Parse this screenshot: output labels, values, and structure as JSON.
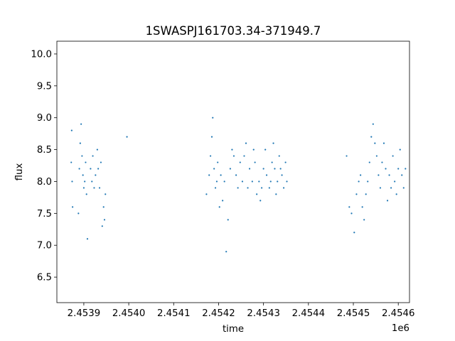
{
  "chart_data": {
    "type": "scatter",
    "title": "1SWASPJ161703.34-371949.7",
    "xlabel": "time",
    "ylabel": "flux",
    "x_offset_label": "1e6",
    "xlim": [
      2453830,
      2454615
    ],
    "ylim": [
      6.1,
      10.2
    ],
    "x_ticks": [
      {
        "value": 2453890,
        "label": "2.4539"
      },
      {
        "value": 2453990,
        "label": "2.4540"
      },
      {
        "value": 2454090,
        "label": "2.4541"
      },
      {
        "value": 2454190,
        "label": "2.4542"
      },
      {
        "value": 2454290,
        "label": "2.4543"
      },
      {
        "value": 2454390,
        "label": "2.4544"
      },
      {
        "value": 2454490,
        "label": "2.4545"
      },
      {
        "value": 2454590,
        "label": "2.4546"
      }
    ],
    "y_ticks": [
      {
        "value": 6.5,
        "label": "6.5"
      },
      {
        "value": 7.0,
        "label": "7.0"
      },
      {
        "value": 7.5,
        "label": "7.5"
      },
      {
        "value": 8.0,
        "label": "8.0"
      },
      {
        "value": 8.5,
        "label": "8.5"
      },
      {
        "value": 9.0,
        "label": "9.0"
      },
      {
        "value": 9.5,
        "label": "9.5"
      },
      {
        "value": 10.0,
        "label": "10.0"
      }
    ],
    "grid": false,
    "marker_color": "#1f77b4",
    "series": [
      {
        "x": [
          2453862,
          2453863,
          2453864,
          2453865,
          2453878,
          2453880,
          2453882,
          2453884,
          2453886,
          2453888,
          2453890,
          2453892,
          2453894,
          2453896,
          2453898,
          2453905,
          2453908,
          2453910,
          2453913,
          2453916,
          2453920,
          2453922,
          2453925,
          2453928,
          2453931,
          2453934,
          2453936,
          2453938,
          2453986,
          2454163,
          2454169,
          2454172,
          2454175,
          2454177,
          2454180,
          2454183,
          2454186,
          2454188,
          2454192,
          2454195,
          2454199,
          2454203,
          2454207,
          2454211,
          2454216,
          2454220,
          2454224,
          2454229,
          2454233,
          2454238,
          2454243,
          2454247,
          2454251,
          2454255,
          2454259,
          2454265,
          2454268,
          2454271,
          2454275,
          2454280,
          2454283,
          2454286,
          2454290,
          2454294,
          2454297,
          2454303,
          2454306,
          2454309,
          2454312,
          2454315,
          2454318,
          2454321,
          2454325,
          2454328,
          2454331,
          2454335,
          2454339,
          2454342,
          2454475,
          2454481,
          2454486,
          2454492,
          2454497,
          2454502,
          2454506,
          2454510,
          2454514,
          2454518,
          2454522,
          2454526,
          2454530,
          2454534,
          2454538,
          2454542,
          2454546,
          2454550,
          2454554,
          2454558,
          2454562,
          2454566,
          2454570,
          2454574,
          2454578,
          2454582,
          2454586,
          2454590,
          2454594,
          2454598,
          2454602,
          2454606
        ],
        "y": [
          8.3,
          8.8,
          8.0,
          7.6,
          7.5,
          8.2,
          8.6,
          8.9,
          8.4,
          8.1,
          7.9,
          8.0,
          8.3,
          7.8,
          7.1,
          8.2,
          8.0,
          8.4,
          7.9,
          8.1,
          8.5,
          8.2,
          7.9,
          8.3,
          7.3,
          7.6,
          7.4,
          7.8,
          8.7,
          7.8,
          8.1,
          8.4,
          8.7,
          9.0,
          8.2,
          7.9,
          8.0,
          8.3,
          7.6,
          8.1,
          7.7,
          8.0,
          6.9,
          7.4,
          8.2,
          8.5,
          8.4,
          8.1,
          7.9,
          8.3,
          8.0,
          8.4,
          8.6,
          7.9,
          8.2,
          8.0,
          8.5,
          8.3,
          7.8,
          8.0,
          7.7,
          7.9,
          8.2,
          8.5,
          8.1,
          7.9,
          8.0,
          8.3,
          8.6,
          8.2,
          7.8,
          8.0,
          8.4,
          8.2,
          8.1,
          7.9,
          8.3,
          8.0,
          8.4,
          7.6,
          7.5,
          7.2,
          7.8,
          8.0,
          8.1,
          7.6,
          7.4,
          7.8,
          8.0,
          8.3,
          8.7,
          8.9,
          8.6,
          8.4,
          8.1,
          7.9,
          8.3,
          8.6,
          8.2,
          7.7,
          8.1,
          7.9,
          8.4,
          8.0,
          7.8,
          8.2,
          8.5,
          8.1,
          7.9,
          8.2
        ]
      }
    ]
  }
}
